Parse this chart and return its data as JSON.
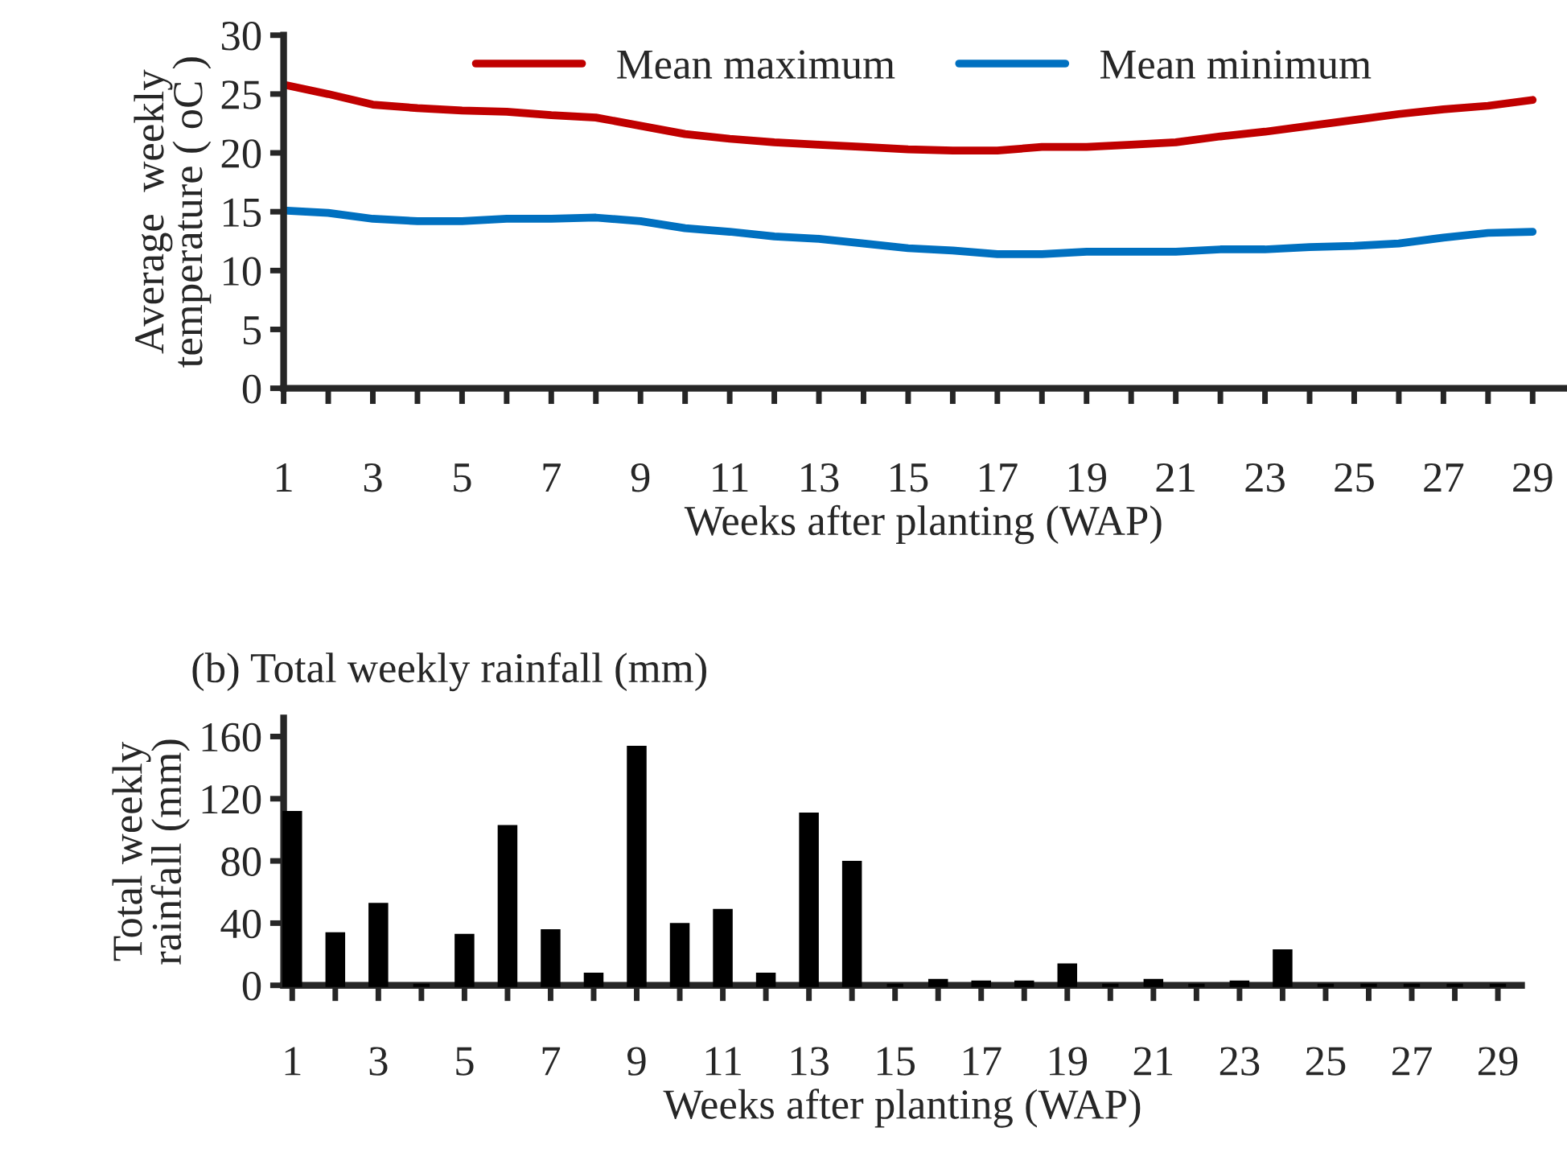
{
  "chart_data": [
    {
      "type": "line",
      "ylabel": "Average  weekly\ntemperature ( oC )",
      "xlabel": "Weeks after planting (WAP)",
      "categories": [
        "1",
        null,
        "3",
        null,
        "5",
        null,
        "7",
        null,
        "9",
        null,
        "11",
        null,
        "13",
        null,
        "15",
        null,
        "17",
        null,
        "19",
        null,
        "21",
        null,
        "23",
        null,
        "25",
        null,
        "27",
        null,
        "29"
      ],
      "series": [
        {
          "name": "Mean maximum",
          "color": "#c00000",
          "values": [
            25.8,
            25.0,
            24.1,
            23.8,
            23.6,
            23.5,
            23.2,
            23.0,
            22.3,
            21.6,
            21.2,
            20.9,
            20.7,
            20.5,
            20.3,
            20.2,
            20.2,
            20.5,
            20.5,
            20.7,
            20.9,
            21.4,
            21.8,
            22.3,
            22.8,
            23.3,
            23.7,
            24.0,
            24.5
          ]
        },
        {
          "name": "Mean minimum",
          "color": "#0070c0",
          "values": [
            15.1,
            14.9,
            14.4,
            14.2,
            14.2,
            14.4,
            14.4,
            14.5,
            14.2,
            13.6,
            13.3,
            12.9,
            12.7,
            12.3,
            11.9,
            11.7,
            11.4,
            11.4,
            11.6,
            11.6,
            11.6,
            11.8,
            11.8,
            12.0,
            12.1,
            12.3,
            12.8,
            13.2,
            13.3
          ]
        }
      ],
      "ylim": [
        0,
        30
      ],
      "yticks": [
        0,
        5,
        10,
        15,
        20,
        25,
        30
      ],
      "legend": "top",
      "marker": "none",
      "line_style": "solid"
    },
    {
      "type": "bar",
      "title": "(b) Total weekly rainfall (mm)",
      "ylabel": "Total weekly\nrainfall (mm)",
      "xlabel": "Weeks after planting (WAP)",
      "categories": [
        "1",
        null,
        "3",
        null,
        "5",
        null,
        "7",
        null,
        "9",
        null,
        "11",
        null,
        "13",
        null,
        "15",
        null,
        "17",
        null,
        "19",
        null,
        "21",
        null,
        "23",
        null,
        "25",
        null,
        "27",
        null,
        "29"
      ],
      "values": [
        111,
        33,
        52,
        0,
        32,
        102,
        35,
        7,
        153,
        39,
        48,
        7,
        110,
        79,
        0,
        3,
        2,
        2,
        13,
        0,
        3,
        0,
        2,
        22,
        0,
        0,
        0,
        0,
        0
      ],
      "color": "#000000",
      "ylim": [
        0,
        172
      ],
      "yticks": [
        0,
        40,
        80,
        120,
        160
      ]
    }
  ]
}
